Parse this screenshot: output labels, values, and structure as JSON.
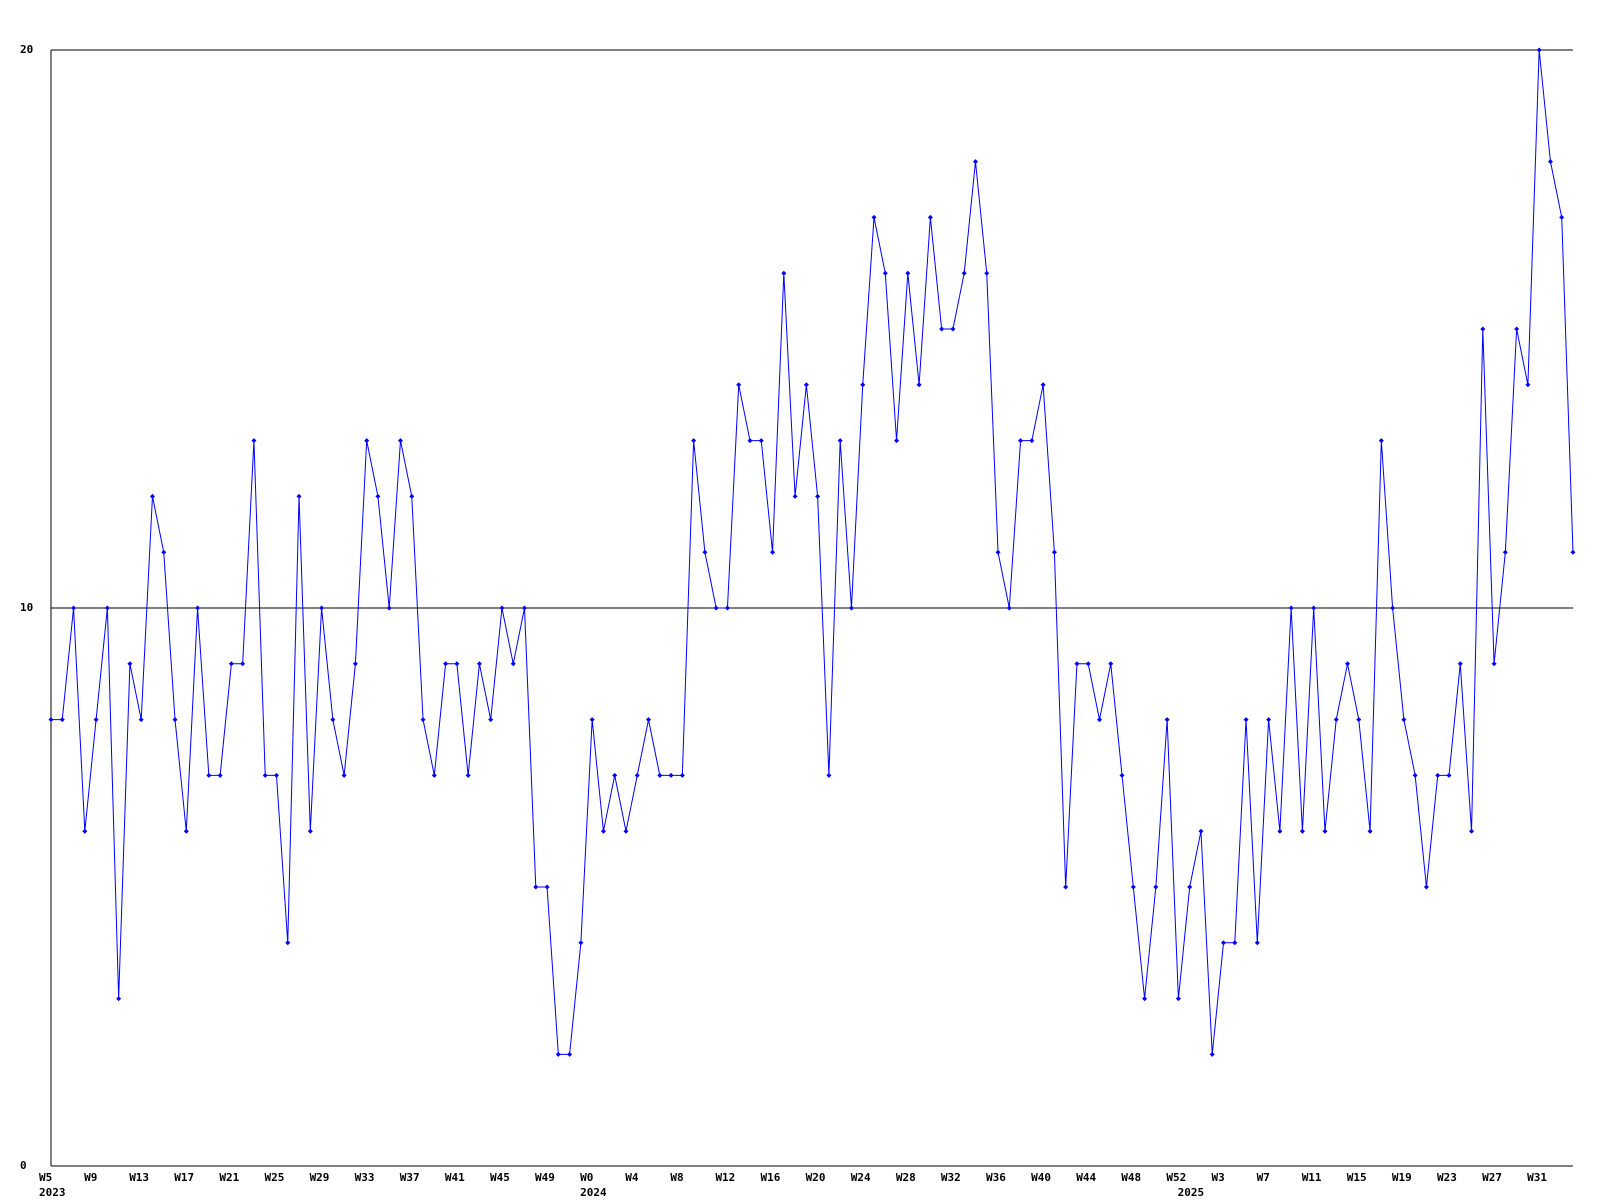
{
  "chart_data": {
    "type": "line",
    "categories": [
      "W5",
      null,
      null,
      null,
      "W9",
      null,
      null,
      null,
      "W13",
      null,
      null,
      null,
      "W17",
      null,
      null,
      null,
      "W21",
      null,
      null,
      null,
      "W25",
      null,
      null,
      null,
      "W29",
      null,
      null,
      null,
      "W33",
      null,
      null,
      null,
      "W37",
      null,
      null,
      null,
      "W41",
      null,
      null,
      null,
      "W45",
      null,
      null,
      null,
      "W49",
      null,
      null,
      null,
      "W0",
      null,
      null,
      null,
      "W4",
      null,
      null,
      null,
      "W8",
      null,
      null,
      null,
      "W12",
      null,
      null,
      null,
      "W16",
      null,
      null,
      null,
      "W20",
      null,
      null,
      null,
      "W24",
      null,
      null,
      null,
      "W28",
      null,
      null,
      null,
      "W32",
      null,
      null,
      null,
      "W36",
      null,
      null,
      null,
      "W40",
      null,
      null,
      null,
      "W44",
      null,
      null,
      null,
      "W48",
      null,
      null,
      null,
      "W52",
      null,
      null,
      null,
      "W3",
      null,
      null,
      null,
      "W7",
      null,
      null,
      null,
      "W11",
      null,
      null,
      null,
      "W15",
      null,
      null,
      null,
      "W19",
      null,
      null,
      null,
      "W23",
      null,
      null,
      null,
      "W27",
      null,
      null,
      null,
      "W31",
      null,
      null,
      null
    ],
    "year_labels": [
      {
        "index": 0,
        "label": "2023"
      },
      {
        "index": 48,
        "label": "2024"
      },
      {
        "index": 101,
        "label": "2025"
      }
    ],
    "series": [
      {
        "color": "#0000ff",
        "values": [
          8,
          8,
          10,
          6,
          8,
          10,
          3,
          9,
          8,
          12,
          11,
          8,
          6,
          10,
          7,
          7,
          9,
          9,
          13,
          7,
          7,
          4,
          12,
          6,
          10,
          8,
          7,
          9,
          13,
          12,
          10,
          13,
          12,
          8,
          7,
          9,
          9,
          7,
          9,
          8,
          10,
          9,
          10,
          5,
          5,
          2,
          2,
          4,
          8,
          6,
          7,
          6,
          7,
          8,
          7,
          7,
          7,
          13,
          11,
          10,
          10,
          14,
          13,
          13,
          11,
          16,
          12,
          14,
          12,
          7,
          13,
          10,
          14,
          17,
          16,
          13,
          16,
          14,
          17,
          15,
          15,
          16,
          18,
          16,
          11,
          10,
          13,
          13,
          14,
          11,
          5,
          9,
          9,
          8,
          9,
          7,
          5,
          3,
          5,
          8,
          3,
          5,
          6,
          2,
          4,
          4,
          8,
          4,
          8,
          6,
          10,
          6,
          10,
          6,
          8,
          9,
          8,
          6,
          13,
          10,
          8,
          7,
          5,
          7,
          7,
          9,
          6,
          15,
          9,
          11,
          15,
          14,
          20,
          18,
          17,
          11
        ]
      }
    ],
    "ylim": [
      0,
      20
    ],
    "yticks": [
      0,
      10,
      20
    ],
    "grid": true
  }
}
